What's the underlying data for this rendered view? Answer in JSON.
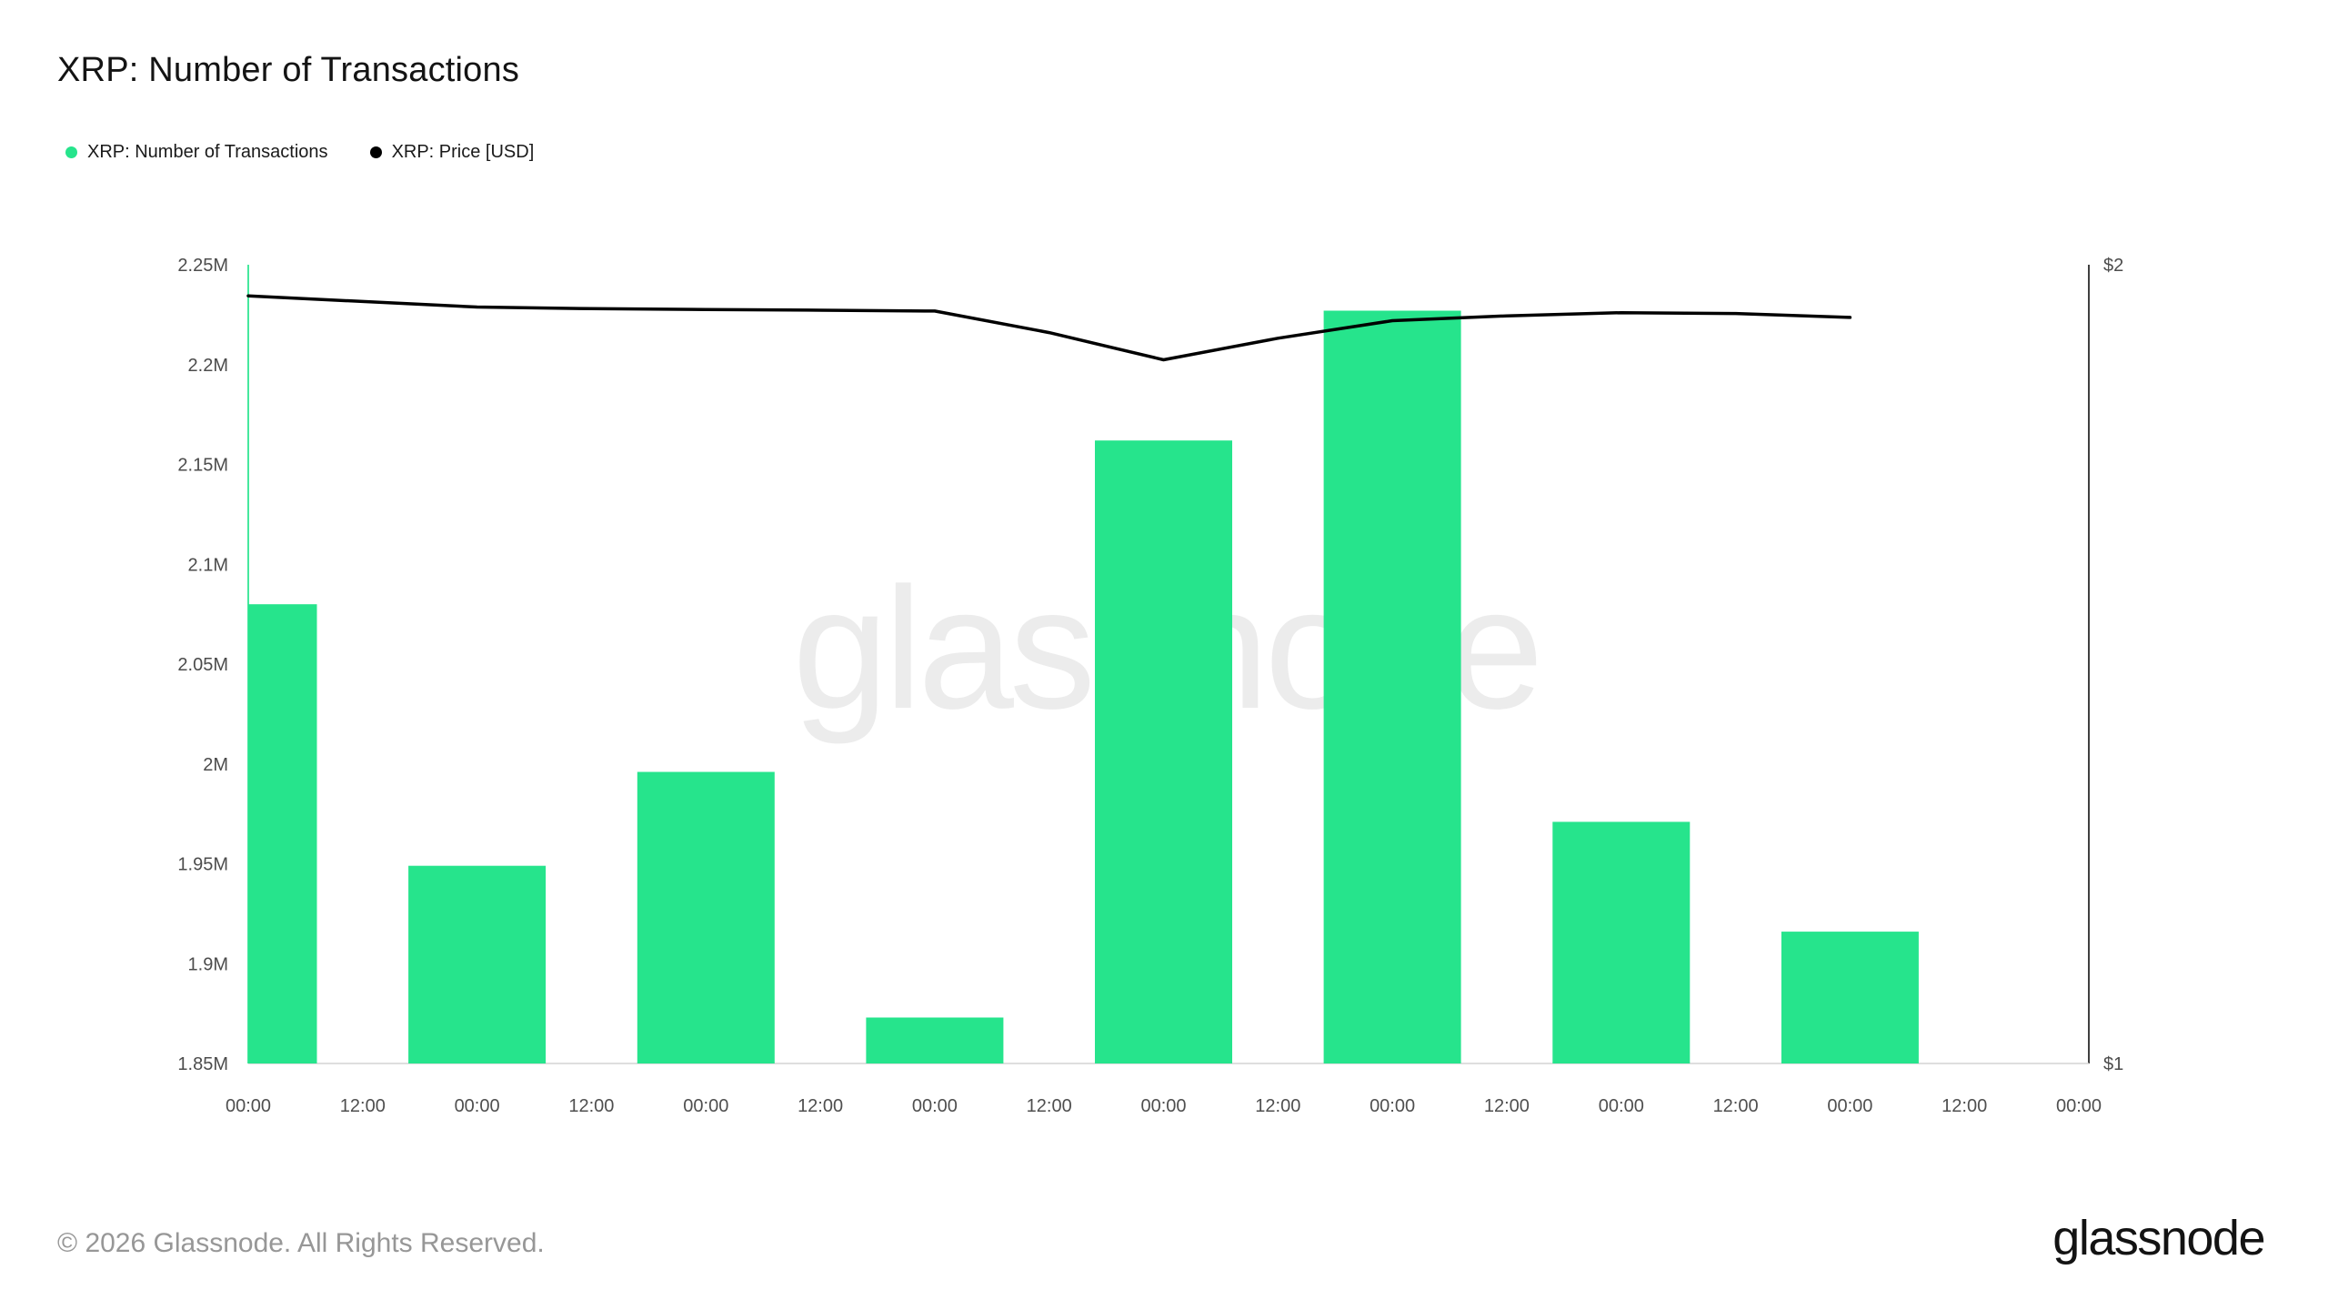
{
  "header": {
    "title": "XRP: Number of Transactions"
  },
  "legend": [
    {
      "label": "XRP: Number of Transactions",
      "color": "#26e48c"
    },
    {
      "label": "XRP: Price [USD]",
      "color": "#000000"
    }
  ],
  "watermark": "glassnode",
  "footer": {
    "copyright": "© 2026 Glassnode. All Rights Reserved.",
    "logo": "glassnode"
  },
  "chart_data": {
    "type": "bar",
    "title": "XRP: Number of Transactions",
    "grid": false,
    "legend_position": "top-left",
    "x_tick_labels": [
      "00:00",
      "12:00",
      "00:00",
      "12:00",
      "00:00",
      "12:00",
      "00:00",
      "12:00",
      "00:00",
      "12:00",
      "00:00",
      "12:00",
      "00:00",
      "12:00",
      "00:00",
      "12:00",
      "00:00"
    ],
    "left_axis": {
      "min": 1850000,
      "max": 2250000,
      "ticks": [
        {
          "value": 1850000,
          "label": "1.85M"
        },
        {
          "value": 1900000,
          "label": "1.9M"
        },
        {
          "value": 1950000,
          "label": "1.95M"
        },
        {
          "value": 2000000,
          "label": "2M"
        },
        {
          "value": 2050000,
          "label": "2.05M"
        },
        {
          "value": 2100000,
          "label": "2.1M"
        },
        {
          "value": 2150000,
          "label": "2.15M"
        },
        {
          "value": 2200000,
          "label": "2.2M"
        },
        {
          "value": 2250000,
          "label": "2.25M"
        }
      ]
    },
    "right_axis": {
      "min": 1,
      "max": 2,
      "ticks": [
        {
          "value": 1,
          "label": "$1"
        },
        {
          "value": 2,
          "label": "$2"
        }
      ]
    },
    "series": [
      {
        "name": "XRP: Number of Transactions",
        "type": "bar",
        "axis": "left",
        "color": "#26e48c",
        "x": [
          0,
          2,
          4,
          6,
          8,
          10,
          12,
          14
        ],
        "values": [
          2080000,
          1949000,
          1996000,
          1873000,
          2162000,
          2227000,
          1971000,
          1916000
        ]
      },
      {
        "name": "XRP: Price [USD]",
        "type": "line",
        "axis": "right",
        "color": "#000000",
        "points": [
          [
            0,
            1.961
          ],
          [
            1,
            1.954
          ],
          [
            2,
            1.947
          ],
          [
            3,
            1.945
          ],
          [
            4,
            1.944
          ],
          [
            5,
            1.943
          ],
          [
            6,
            1.942
          ],
          [
            7,
            1.915
          ],
          [
            8,
            1.881
          ],
          [
            9,
            1.908
          ],
          [
            10,
            1.93
          ],
          [
            11,
            1.936
          ],
          [
            12,
            1.94
          ],
          [
            13,
            1.939
          ],
          [
            14,
            1.934
          ]
        ]
      }
    ]
  }
}
